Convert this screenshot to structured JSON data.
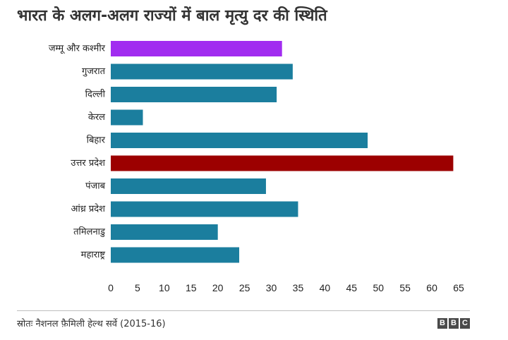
{
  "chart_data": {
    "type": "bar",
    "orientation": "horizontal",
    "title": "भारत के अलग-अलग राज्यों में बाल मृत्यु दर की स्थिति",
    "categories": [
      "जम्मू और कश्मीर",
      "गुजरात",
      "दिल्ली",
      "केरल",
      "बिहार",
      "उत्तर प्रदेश",
      "पंजाब",
      "आंध्र प्रदेश",
      "तमिलनाडु",
      "महाराष्ट्र"
    ],
    "values": [
      32,
      34,
      31,
      6,
      48,
      64,
      29,
      35,
      20,
      24
    ],
    "bar_colors": [
      "#a12cf0",
      "#1b7e9e",
      "#1b7e9e",
      "#1b7e9e",
      "#1b7e9e",
      "#9c0000",
      "#1b7e9e",
      "#1b7e9e",
      "#1b7e9e",
      "#1b7e9e"
    ],
    "xlim": [
      0,
      65
    ],
    "xticks": [
      "0",
      "5",
      "10",
      "15",
      "20",
      "25",
      "30",
      "35",
      "40",
      "45",
      "50",
      "55",
      "60",
      "65"
    ],
    "xlabel": "",
    "ylabel": "",
    "grid": false,
    "legend": "none"
  },
  "source": "स्रोतः नैशनल फ़ैमिली हेल्थ सर्वे (2015-16)",
  "brand": [
    "B",
    "B",
    "C"
  ]
}
